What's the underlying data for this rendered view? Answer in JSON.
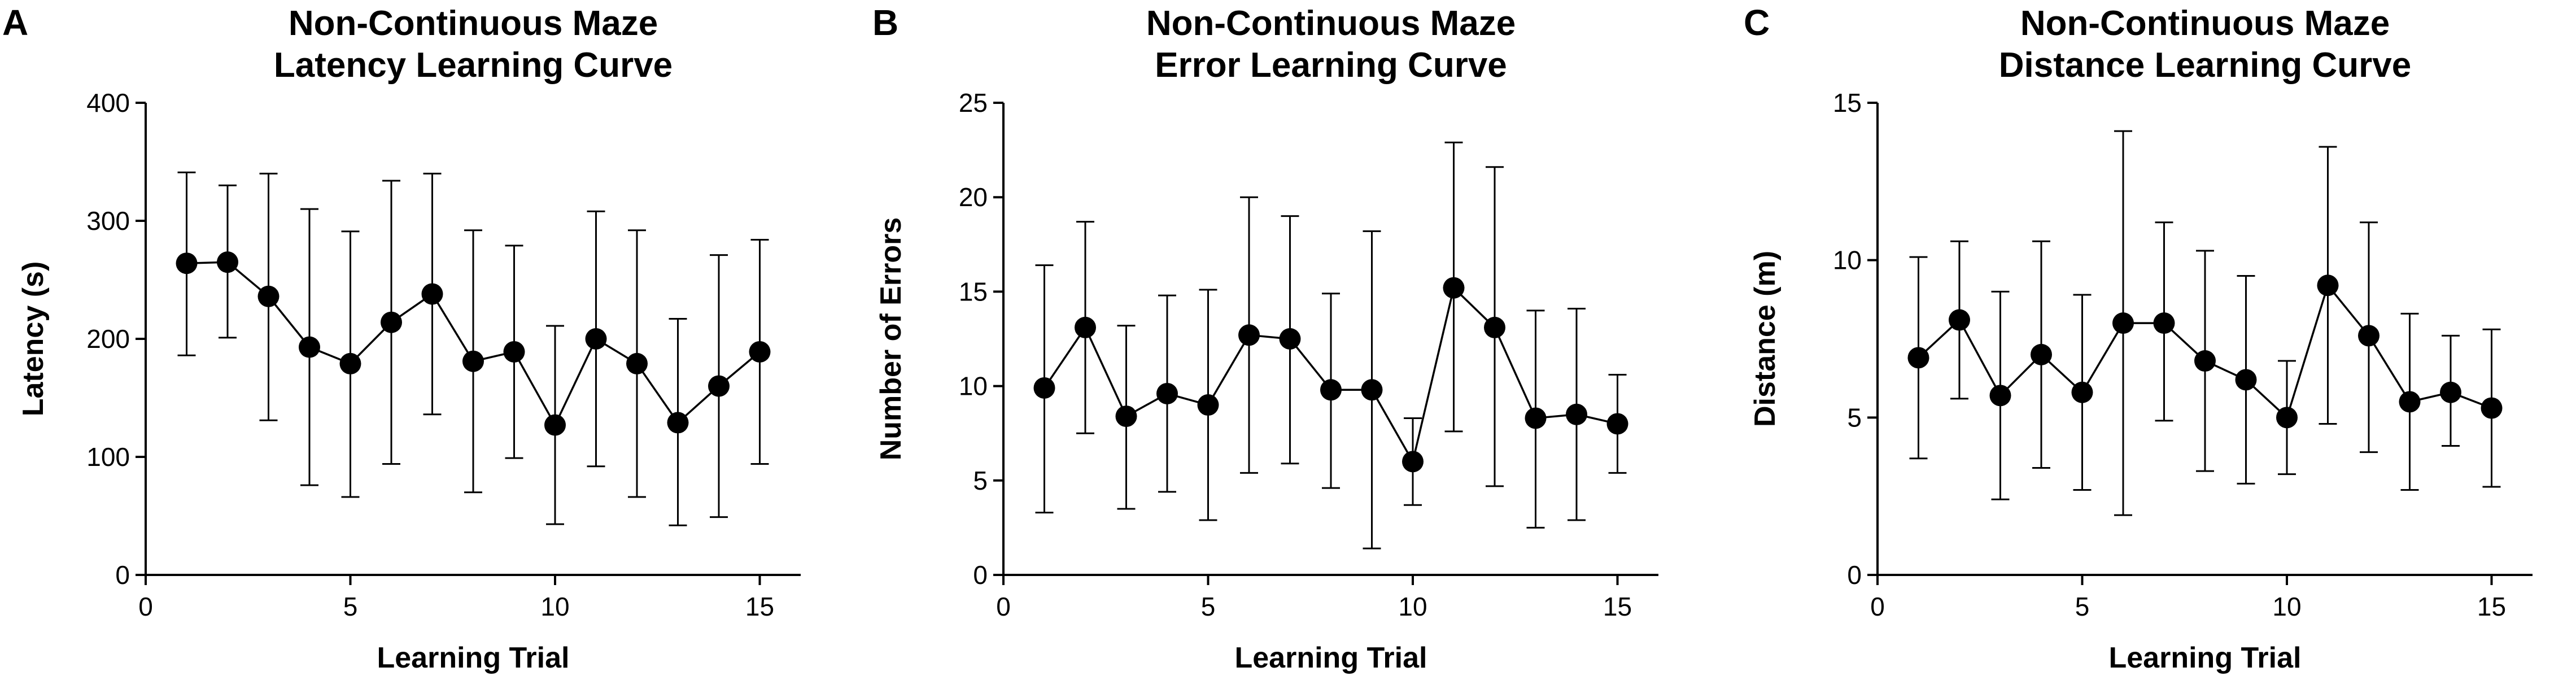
{
  "chart_data": [
    {
      "type": "line",
      "panel_label": "A",
      "title": [
        "Non-Continuous Maze",
        "Latency Learning Curve"
      ],
      "xlabel": "Learning Trial",
      "ylabel": "Latency (s)",
      "xlim": [
        0,
        16
      ],
      "ylim": [
        0,
        400
      ],
      "xticks": [
        0,
        5,
        10,
        15
      ],
      "yticks": [
        0,
        100,
        200,
        300,
        400
      ],
      "x": [
        1,
        2,
        3,
        4,
        5,
        6,
        7,
        8,
        9,
        10,
        11,
        12,
        13,
        14,
        15
      ],
      "series": [
        {
          "values": [
            264,
            265,
            236,
            193,
            179,
            214,
            238,
            181,
            189,
            127,
            200,
            179,
            129,
            160,
            189
          ],
          "error_upper": [
            341,
            330,
            340,
            310,
            291,
            334,
            340,
            292,
            279,
            211,
            308,
            292,
            217,
            271,
            284
          ],
          "error_lower": [
            186,
            201,
            131,
            76,
            66,
            94,
            136,
            70,
            99,
            43,
            92,
            66,
            42,
            49,
            94
          ]
        }
      ]
    },
    {
      "type": "line",
      "panel_label": "B",
      "title": [
        "Non-Continuous Maze",
        "Error Learning Curve"
      ],
      "xlabel": "Learning Trial",
      "ylabel": "Number of Errors",
      "xlim": [
        0,
        16
      ],
      "ylim": [
        0,
        25
      ],
      "xticks": [
        0,
        5,
        10,
        15
      ],
      "yticks": [
        0,
        5,
        10,
        15,
        20,
        25
      ],
      "x": [
        1,
        2,
        3,
        4,
        5,
        6,
        7,
        8,
        9,
        10,
        11,
        12,
        13,
        14,
        15
      ],
      "series": [
        {
          "values": [
            9.9,
            13.1,
            8.4,
            9.6,
            9.0,
            12.7,
            12.5,
            9.8,
            9.8,
            6.0,
            15.2,
            13.1,
            8.3,
            8.5,
            8.0
          ],
          "error_upper": [
            16.4,
            18.7,
            13.2,
            14.8,
            15.1,
            20.0,
            19.0,
            14.9,
            18.2,
            8.3,
            22.9,
            21.6,
            14.0,
            14.1,
            10.6
          ],
          "error_lower": [
            3.3,
            7.5,
            3.5,
            4.4,
            2.9,
            5.4,
            5.9,
            4.6,
            1.4,
            3.7,
            7.6,
            4.7,
            2.5,
            2.9,
            5.4
          ]
        }
      ]
    },
    {
      "type": "line",
      "panel_label": "C",
      "title": [
        "Non-Continuous Maze",
        "Distance Learning Curve"
      ],
      "xlabel": "Learning Trial",
      "ylabel": "Distance (m)",
      "xlim": [
        0,
        16
      ],
      "ylim": [
        0,
        15
      ],
      "xticks": [
        0,
        5,
        10,
        15
      ],
      "yticks": [
        0,
        5,
        10,
        15
      ],
      "x": [
        1,
        2,
        3,
        4,
        5,
        6,
        7,
        8,
        9,
        10,
        11,
        12,
        13,
        14,
        15
      ],
      "series": [
        {
          "values": [
            6.9,
            8.1,
            5.7,
            7.0,
            5.8,
            8.0,
            8.0,
            6.8,
            6.2,
            5.0,
            9.2,
            7.6,
            5.5,
            5.8,
            5.3
          ],
          "error_upper": [
            10.1,
            10.6,
            9.0,
            10.6,
            8.9,
            14.1,
            11.2,
            10.3,
            9.5,
            6.8,
            13.6,
            11.2,
            8.3,
            7.6,
            7.8
          ],
          "error_lower": [
            3.7,
            5.6,
            2.4,
            3.4,
            2.7,
            1.9,
            4.9,
            3.3,
            2.9,
            3.2,
            4.8,
            3.9,
            2.7,
            4.1,
            2.8
          ]
        }
      ]
    }
  ]
}
